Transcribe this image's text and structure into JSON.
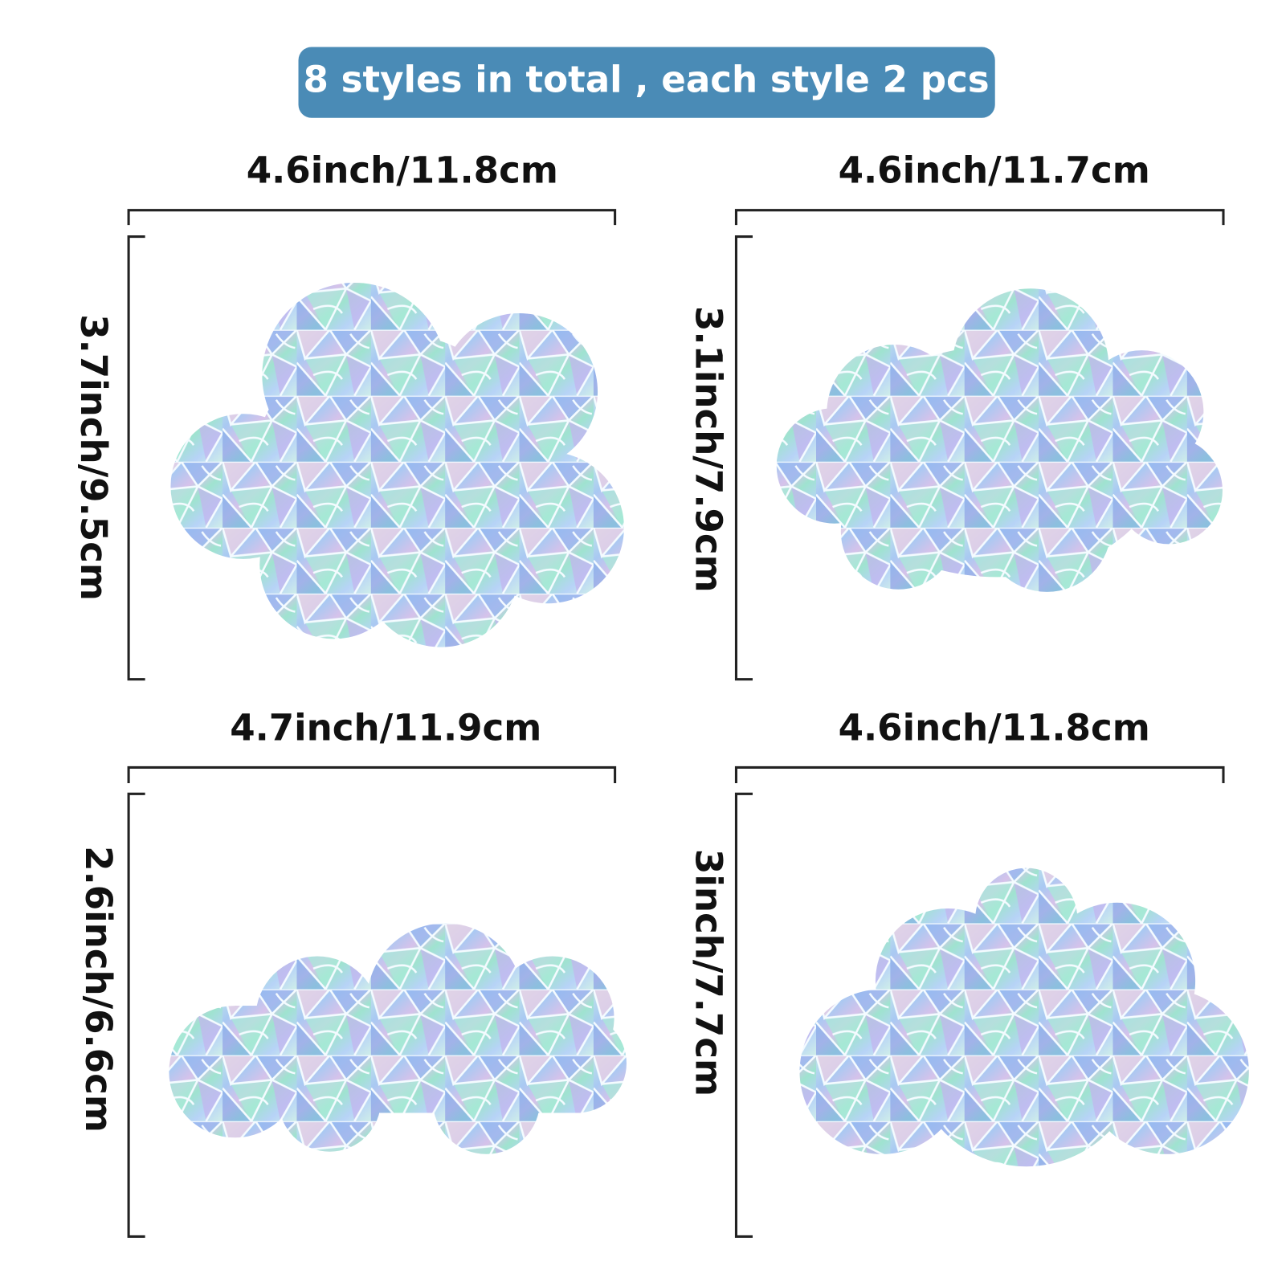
{
  "header": {
    "title": "8 styles in total , each style 2 pcs"
  },
  "panels": [
    {
      "width_label": "4.6inch/11.8cm",
      "height_label": "3.7inch/9.5cm"
    },
    {
      "width_label": "4.6inch/11.7cm",
      "height_label": "3.1inch/7.9cm"
    },
    {
      "width_label": "4.7inch/11.9cm",
      "height_label": "2.6inch/6.6cm"
    },
    {
      "width_label": "4.6inch/11.8cm",
      "height_label": "3inch/7.7cm"
    }
  ]
}
